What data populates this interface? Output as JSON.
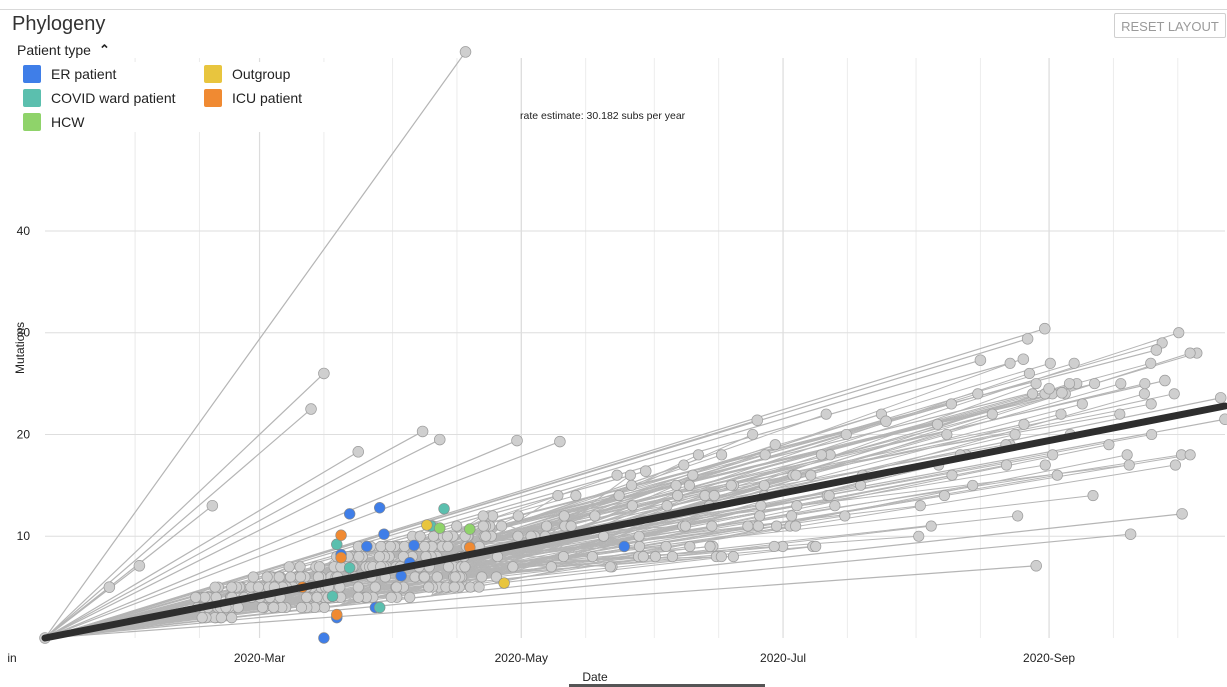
{
  "panel": {
    "title": "Phylogeny",
    "reset_label": "RESET LAYOUT"
  },
  "legend": {
    "title": "Patient type",
    "toggle_icon": "chevron-up-icon",
    "items": [
      {
        "label": "ER patient",
        "color": "#3f7ee8"
      },
      {
        "label": "Outgroup",
        "color": "#e8c53e"
      },
      {
        "label": "COVID ward patient",
        "color": "#5bbfae"
      },
      {
        "label": "ICU patient",
        "color": "#f08a32"
      },
      {
        "label": "HCW",
        "color": "#8fd36a"
      }
    ]
  },
  "chart_data": {
    "type": "scatter",
    "xlabel": "Date",
    "ylabel": "Mutations",
    "x_tick_labels": [
      "in",
      "2020-Mar",
      "2020-May",
      "2020-Jul",
      "2020-Sep"
    ],
    "y_ticks": [
      10,
      20,
      30,
      40
    ],
    "ylim": [
      0,
      57
    ],
    "xlim": [
      "2020-01-11",
      "2020-10-12"
    ],
    "grid": true,
    "annotation": "rate estimate: 30.182 subs per year",
    "regression": {
      "rate_subs_per_year": 30.182,
      "start": [
        "2020-01-11",
        0
      ],
      "end": [
        "2020-10-12",
        22.8
      ]
    },
    "root": [
      "2020-01-11",
      0
    ],
    "point_color": "#cfcfcf",
    "line_color": "#b5b5b5",
    "trend_color": "#2e2e2e",
    "outliers": [
      {
        "x": "2020-04-18",
        "y": 57.6
      },
      {
        "x": "2020-02-19",
        "y": 13.0
      },
      {
        "x": "2020-03-16",
        "y": 26.0
      },
      {
        "x": "2020-03-13",
        "y": 22.5
      },
      {
        "x": "2020-03-24",
        "y": 18.3
      },
      {
        "x": "2020-04-08",
        "y": 20.3
      },
      {
        "x": "2020-04-12",
        "y": 19.5
      },
      {
        "x": "2020-04-30",
        "y": 19.4
      },
      {
        "x": "2020-05-10",
        "y": 19.3
      },
      {
        "x": "2020-06-25",
        "y": 21.4
      },
      {
        "x": "2020-07-25",
        "y": 21.3
      },
      {
        "x": "2020-08-16",
        "y": 27.3
      },
      {
        "x": "2020-08-26",
        "y": 27.4
      },
      {
        "x": "2020-08-27",
        "y": 29.4
      },
      {
        "x": "2020-08-31",
        "y": 30.4
      },
      {
        "x": "2020-09-26",
        "y": 28.3
      },
      {
        "x": "2020-09-28",
        "y": 25.3
      },
      {
        "x": "2020-10-11",
        "y": 23.6
      },
      {
        "x": "2020-10-12",
        "y": 21.5
      },
      {
        "x": "2020-09-01",
        "y": 24.5
      },
      {
        "x": "2020-09-04",
        "y": 24.1
      },
      {
        "x": "2020-08-29",
        "y": 7.1
      },
      {
        "x": "2020-10-02",
        "y": 12.2
      },
      {
        "x": "2020-09-20",
        "y": 10.2
      },
      {
        "x": "2020-05-30",
        "y": 16.4
      },
      {
        "x": "2020-01-26",
        "y": 5.0
      },
      {
        "x": "2020-02-02",
        "y": 7.1
      },
      {
        "x": "2020-01-11",
        "y": 0
      }
    ],
    "colored_points": [
      {
        "type": "ER patient",
        "x": "2020-03-22",
        "y": 12.2
      },
      {
        "type": "ER patient",
        "x": "2020-03-29",
        "y": 12.8
      },
      {
        "type": "ER patient",
        "x": "2020-04-06",
        "y": 9.1
      },
      {
        "type": "ER patient",
        "x": "2020-03-26",
        "y": 9.0
      },
      {
        "type": "ER patient",
        "x": "2020-04-03",
        "y": 6.1
      },
      {
        "type": "ER patient",
        "x": "2020-04-05",
        "y": 7.4
      },
      {
        "type": "ER patient",
        "x": "2020-03-30",
        "y": 10.2
      },
      {
        "type": "ER patient",
        "x": "2020-03-20",
        "y": 8.2
      },
      {
        "type": "ER patient",
        "x": "2020-03-28",
        "y": 3.0
      },
      {
        "type": "ER patient",
        "x": "2020-03-19",
        "y": 2.0
      },
      {
        "type": "ER patient",
        "x": "2020-03-16",
        "y": 0
      },
      {
        "type": "ER patient",
        "x": "2020-05-25",
        "y": 9.0
      },
      {
        "type": "COVID ward patient",
        "x": "2020-04-13",
        "y": 12.7
      },
      {
        "type": "COVID ward patient",
        "x": "2020-04-10",
        "y": 11.0
      },
      {
        "type": "COVID ward patient",
        "x": "2020-03-19",
        "y": 9.2
      },
      {
        "type": "COVID ward patient",
        "x": "2020-03-22",
        "y": 6.9
      },
      {
        "type": "COVID ward patient",
        "x": "2020-03-29",
        "y": 3.0
      },
      {
        "type": "COVID ward patient",
        "x": "2020-03-18",
        "y": 4.1
      },
      {
        "type": "HCW",
        "x": "2020-04-12",
        "y": 10.8
      },
      {
        "type": "HCW",
        "x": "2020-04-19",
        "y": 10.7
      },
      {
        "type": "ICU patient",
        "x": "2020-03-20",
        "y": 7.9
      },
      {
        "type": "ICU patient",
        "x": "2020-04-19",
        "y": 8.9
      },
      {
        "type": "ICU patient",
        "x": "2020-03-11",
        "y": 5.0
      },
      {
        "type": "ICU patient",
        "x": "2020-03-19",
        "y": 2.3
      },
      {
        "type": "ICU patient",
        "x": "2020-03-20",
        "y": 10.1
      },
      {
        "type": "Outgroup",
        "x": "2020-04-27",
        "y": 5.4
      },
      {
        "type": "Outgroup",
        "x": "2020-04-09",
        "y": 11.1
      }
    ]
  }
}
